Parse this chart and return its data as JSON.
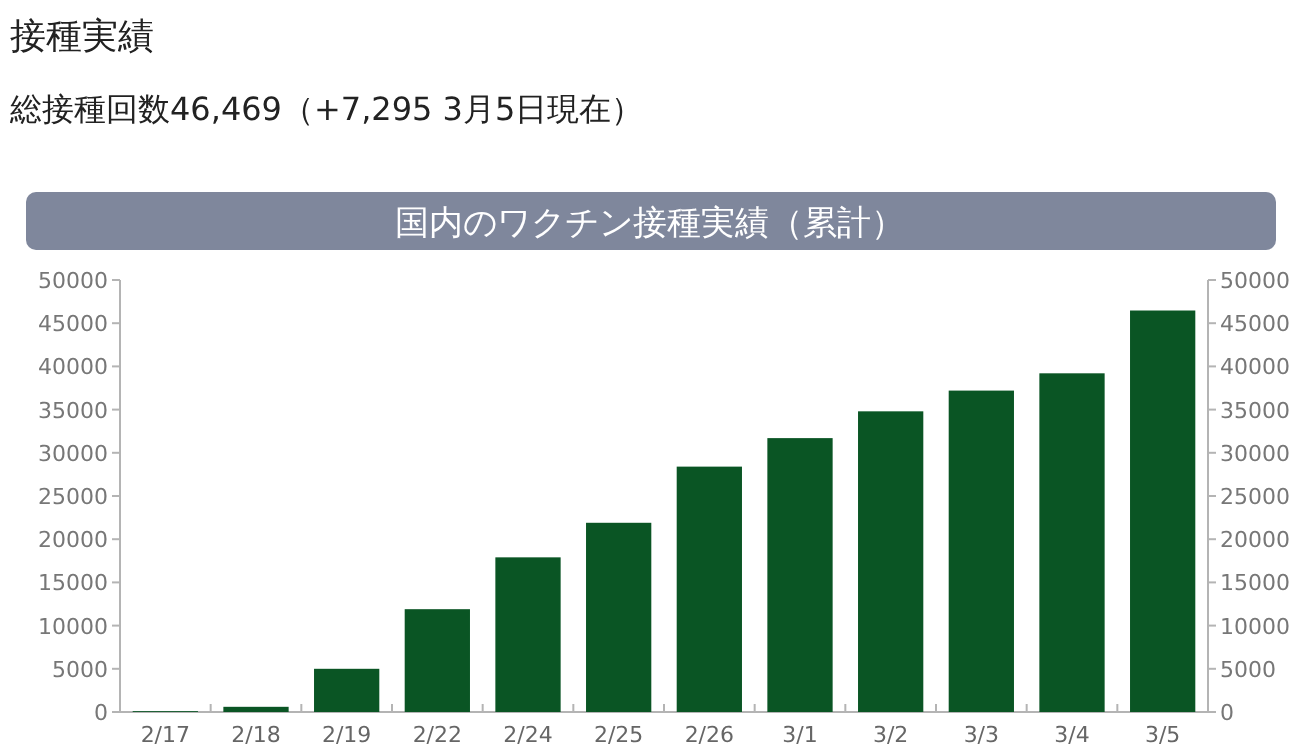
{
  "chart_data": {
    "type": "bar",
    "title": "国内のワクチン接種実績（累計）",
    "annotations": [
      "接種実績",
      "総接種回数46,469（+7,295 3月5日現在）"
    ],
    "categories": [
      "2/17",
      "2/18",
      "2/19",
      "2/22",
      "2/24",
      "2/25",
      "2/26",
      "3/1",
      "3/2",
      "3/3",
      "3/4",
      "3/5"
    ],
    "values": [
      100,
      600,
      5000,
      11900,
      17900,
      21900,
      28400,
      31700,
      34800,
      37200,
      39200,
      46469
    ],
    "color": "#0a5524",
    "ylim": [
      0,
      50000
    ],
    "yticks": [
      0,
      5000,
      10000,
      15000,
      20000,
      25000,
      30000,
      35000,
      40000,
      45000,
      50000
    ],
    "y2lim": [
      0,
      50000
    ],
    "y2ticks": [
      0,
      5000,
      10000,
      15000,
      20000,
      25000,
      30000,
      35000,
      40000,
      45000,
      50000
    ]
  }
}
